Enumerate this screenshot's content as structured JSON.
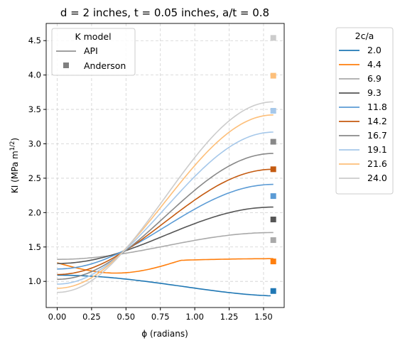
{
  "chart_data": {
    "type": "line",
    "title": "d = 2 inches, t = 0.05 inches, a/t = 0.8",
    "xlabel": "ϕ (radians)",
    "ylabel": "KI (MPa m",
    "ylabel_sup": "1/2",
    "ylabel_end": ")",
    "xlim": [
      -0.08,
      1.65
    ],
    "ylim": [
      0.62,
      4.75
    ],
    "xticks": [
      0.0,
      0.25,
      0.5,
      0.75,
      1.0,
      1.25,
      1.5
    ],
    "xtick_labels": [
      "0.00",
      "0.25",
      "0.50",
      "0.75",
      "1.00",
      "1.25",
      "1.50"
    ],
    "yticks": [
      1.0,
      1.5,
      2.0,
      2.5,
      3.0,
      3.5,
      4.0,
      4.5
    ],
    "ytick_labels": [
      "1.0",
      "1.5",
      "2.0",
      "2.5",
      "3.0",
      "3.5",
      "4.0",
      "4.5"
    ],
    "grid": true,
    "model_legend": {
      "title": "K model",
      "entries": [
        {
          "label": "API",
          "marker": "line"
        },
        {
          "label": "Anderson",
          "marker": "square"
        }
      ]
    },
    "series_legend_title": "2c/a",
    "x_anderson": 1.5708,
    "series": [
      {
        "name": "2.0",
        "color": "#1f77b4",
        "k0": 1.09,
        "k90": 0.79,
        "anderson": 0.86
      },
      {
        "name": "4.4",
        "color": "#ff7f0e",
        "k0": 1.27,
        "k90": 1.33,
        "anderson": 1.29
      },
      {
        "name": "6.9",
        "color": "#a9a9a9",
        "k0": 1.32,
        "k90": 1.71,
        "anderson": 1.6
      },
      {
        "name": "9.3",
        "color": "#555555",
        "k0": 1.26,
        "k90": 2.08,
        "anderson": 1.9
      },
      {
        "name": "11.8",
        "color": "#5b9bd5",
        "k0": 1.18,
        "k90": 2.41,
        "anderson": 2.24
      },
      {
        "name": "14.2",
        "color": "#c45a10",
        "k0": 1.1,
        "k90": 2.63,
        "anderson": 2.63
      },
      {
        "name": "16.7",
        "color": "#888888",
        "k0": 1.03,
        "k90": 2.86,
        "anderson": 3.03
      },
      {
        "name": "19.1",
        "color": "#a6c8ea",
        "k0": 0.96,
        "k90": 3.17,
        "anderson": 3.48
      },
      {
        "name": "21.6",
        "color": "#fdbf7a",
        "k0": 0.9,
        "k90": 3.42,
        "anderson": 3.99
      },
      {
        "name": "24.0",
        "color": "#cccccc",
        "k0": 0.84,
        "k90": 3.61,
        "anderson": 4.54
      }
    ]
  }
}
